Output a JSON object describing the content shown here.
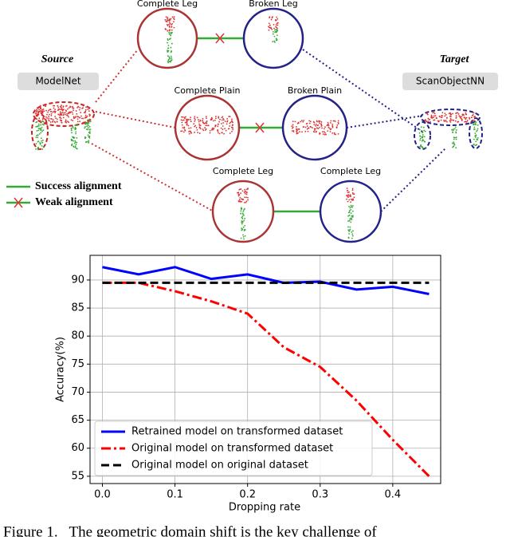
{
  "diagram": {
    "source_title": "Source",
    "source_dataset": "ModelNet",
    "target_title": "Target",
    "target_dataset": "ScanObjectNN",
    "nodes": [
      {
        "label": "Complete Leg"
      },
      {
        "label": "Broken Leg"
      },
      {
        "label": "Complete Plain"
      },
      {
        "label": "Broken Plain"
      },
      {
        "label": "Complete Leg"
      },
      {
        "label": "Complete Leg"
      }
    ],
    "legend": [
      "Success alignment",
      "Weak alignment"
    ]
  },
  "chart_data": {
    "type": "line",
    "x": [
      0.0,
      0.05,
      0.1,
      0.15,
      0.2,
      0.25,
      0.3,
      0.35,
      0.4,
      0.45
    ],
    "series": [
      {
        "name": "Retrained model on transformed dataset",
        "color": "#0000ff",
        "dash": "solid",
        "values": [
          92.3,
          91.0,
          92.3,
          90.2,
          91.0,
          89.5,
          89.7,
          88.3,
          88.8,
          87.5
        ]
      },
      {
        "name": "Original model on transformed dataset",
        "color": "#ff0000",
        "dash": "dashdot",
        "values": [
          89.5,
          89.5,
          88.0,
          86.2,
          84.0,
          78.0,
          74.5,
          68.5,
          61.5,
          55.0
        ]
      },
      {
        "name": "Original model on original dataset",
        "color": "#000000",
        "dash": "dashed",
        "values": [
          89.5,
          89.5,
          89.5,
          89.5,
          89.5,
          89.5,
          89.5,
          89.5,
          89.5,
          89.5
        ]
      }
    ],
    "x_label": "Dropping rate",
    "y_label": "Accuracy(%)",
    "xlim": [
      -0.017,
      0.466
    ],
    "ylim": [
      53.7,
      94.4
    ],
    "xticks": [
      {
        "value": 0,
        "label": "0.0"
      },
      0.1,
      0.2,
      0.3,
      0.4
    ],
    "yticks": [
      55,
      60,
      65,
      70,
      75,
      80,
      85,
      90
    ],
    "grid": true,
    "legend_position": "lower left"
  },
  "caption": "Figure 1.   The geometric domain shift is the key challenge of"
}
